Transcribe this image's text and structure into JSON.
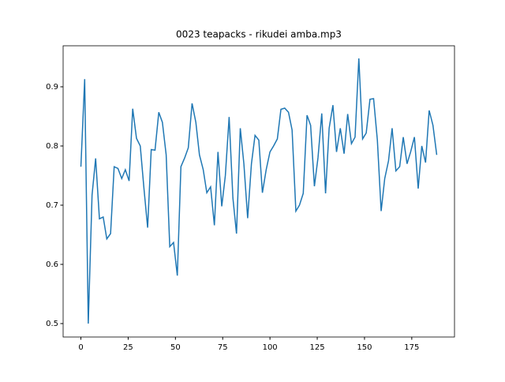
{
  "chart_data": {
    "type": "line",
    "title": "0023 teapacks - rikudei amba.mp3",
    "x": [
      0,
      2,
      3.9,
      5.9,
      7.8,
      9.8,
      11.8,
      13.7,
      15.7,
      17.6,
      19.6,
      21.6,
      23.5,
      25.5,
      27.4,
      29.4,
      31.4,
      33.3,
      35.3,
      37.2,
      39.2,
      41.2,
      43.1,
      45.1,
      47,
      49,
      51,
      52.9,
      54.9,
      56.8,
      58.8,
      60.8,
      62.7,
      64.7,
      66.6,
      68.6,
      70.6,
      72.5,
      74.5,
      76.4,
      78.4,
      80.4,
      82.3,
      84.3,
      86.2,
      88.2,
      90.2,
      92.1,
      94.1,
      96,
      98,
      100,
      101.9,
      103.9,
      105.8,
      107.8,
      109.8,
      111.7,
      113.7,
      115.6,
      117.6,
      119.6,
      121.5,
      123.5,
      125.4,
      127.4,
      129.4,
      131.3,
      133.3,
      135.2,
      137.2,
      139.2,
      141.1,
      143.1,
      145,
      147,
      149,
      150.9,
      152.9,
      154.8,
      156.8,
      158.8,
      160.7,
      162.7,
      164.6,
      166.6,
      168.6,
      170.5,
      172.5,
      174.4,
      176.4,
      178.4,
      180.3,
      182.3,
      184.2,
      186.2,
      188.2
    ],
    "series": [
      {
        "color": "#1f77b4",
        "values": [
          0.765,
          0.913,
          0.5,
          0.717,
          0.779,
          0.677,
          0.68,
          0.643,
          0.652,
          0.765,
          0.762,
          0.745,
          0.76,
          0.741,
          0.863,
          0.813,
          0.8,
          0.73,
          0.662,
          0.794,
          0.793,
          0.857,
          0.84,
          0.785,
          0.63,
          0.637,
          0.581,
          0.765,
          0.78,
          0.797,
          0.872,
          0.84,
          0.785,
          0.76,
          0.721,
          0.731,
          0.666,
          0.79,
          0.698,
          0.75,
          0.849,
          0.712,
          0.652,
          0.83,
          0.77,
          0.678,
          0.77,
          0.818,
          0.81,
          0.721,
          0.76,
          0.79,
          0.8,
          0.812,
          0.862,
          0.864,
          0.857,
          0.827,
          0.69,
          0.7,
          0.72,
          0.852,
          0.835,
          0.732,
          0.78,
          0.855,
          0.72,
          0.83,
          0.869,
          0.79,
          0.83,
          0.787,
          0.854,
          0.804,
          0.815,
          0.948,
          0.812,
          0.822,
          0.879,
          0.88,
          0.81,
          0.69,
          0.745,
          0.775,
          0.83,
          0.758,
          0.765,
          0.815,
          0.77,
          0.79,
          0.815,
          0.728,
          0.8,
          0.772,
          0.86,
          0.835,
          0.785
        ]
      }
    ],
    "xlim": [
      -9.4,
      197.6
    ],
    "ylim": [
      0.4773,
      0.9693
    ],
    "xticks": [
      0,
      25,
      50,
      75,
      100,
      125,
      150,
      175
    ],
    "yticks": [
      0.5,
      0.6,
      0.7,
      0.8,
      0.9
    ]
  }
}
